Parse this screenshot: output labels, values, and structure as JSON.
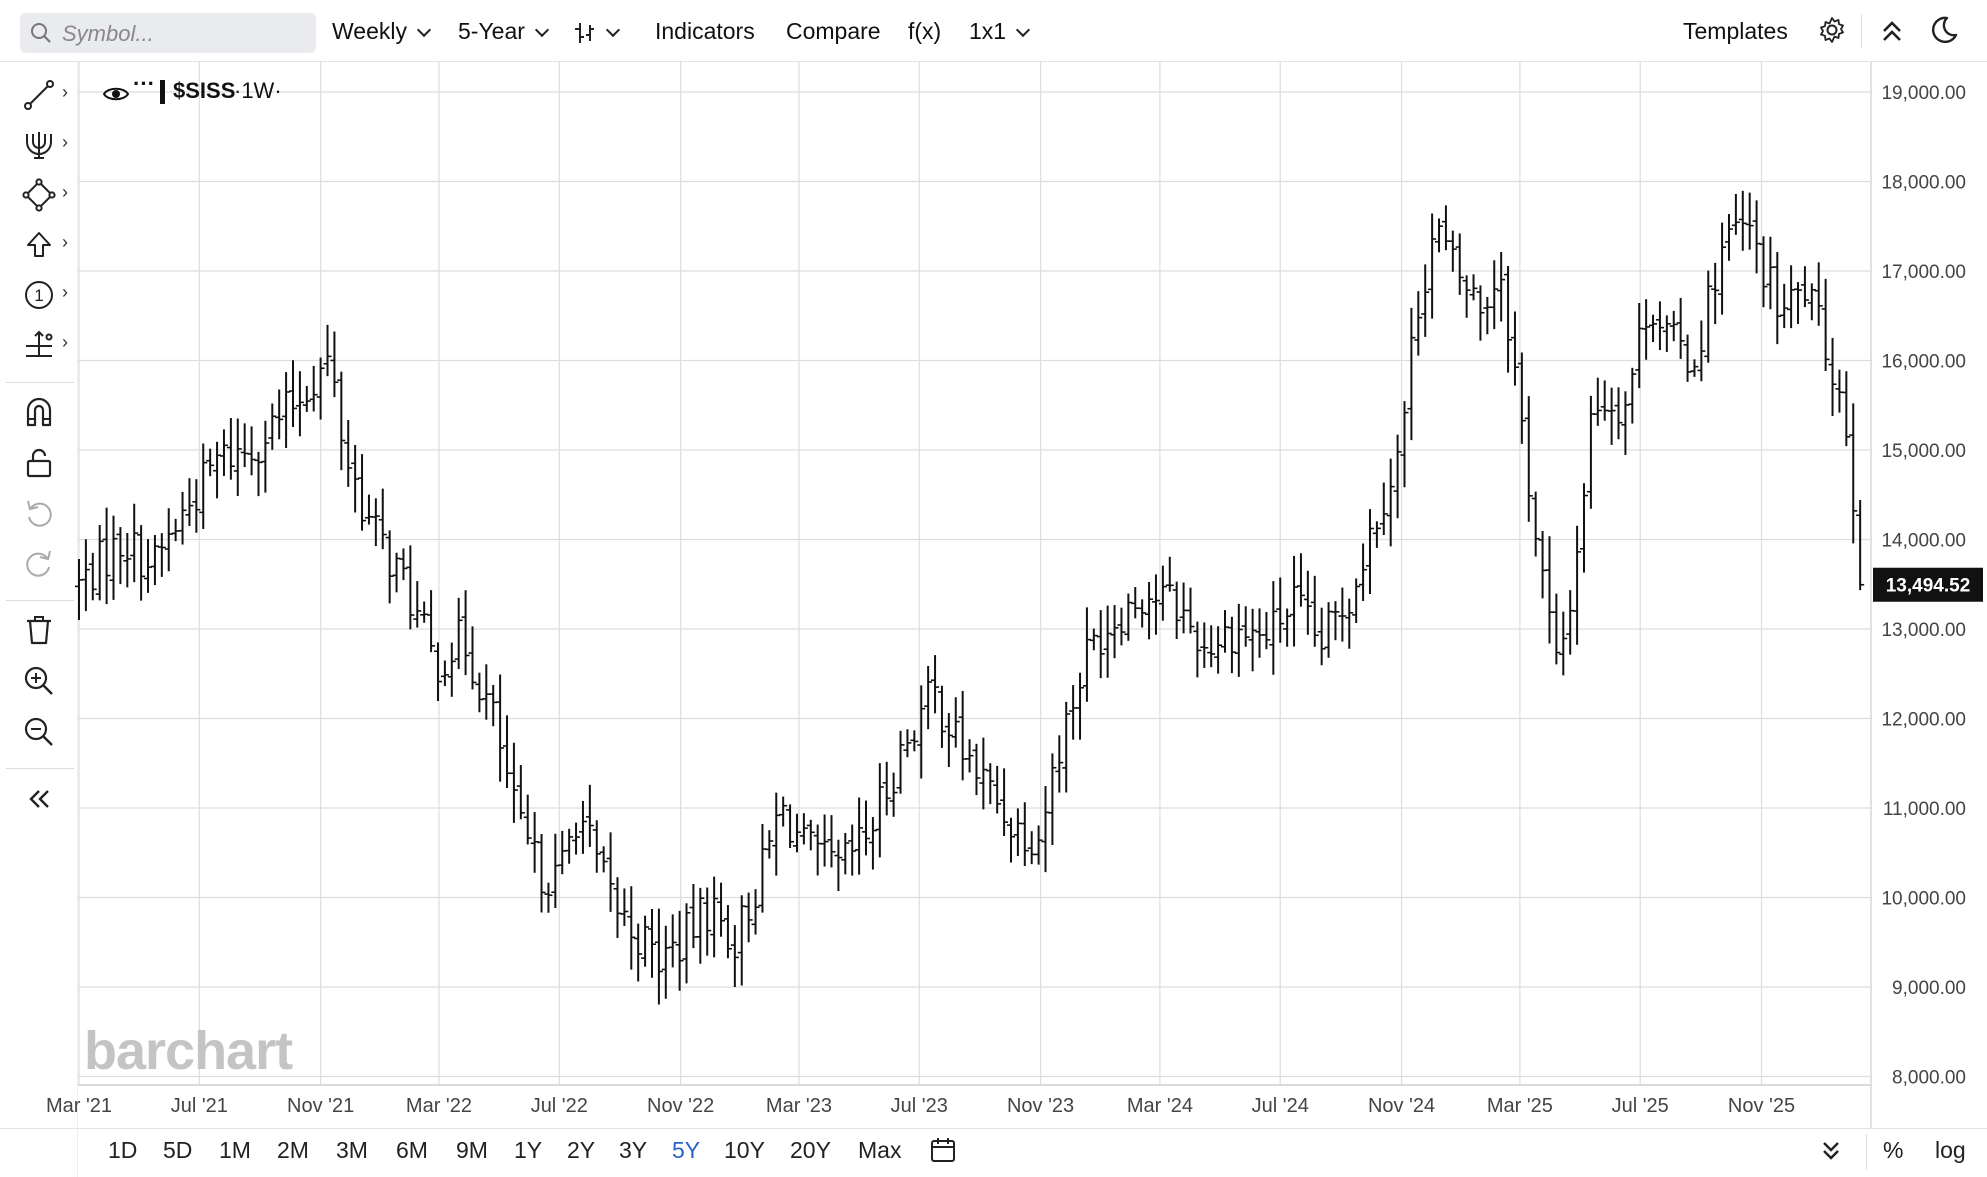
{
  "toolbar": {
    "symbol_placeholder": "Symbol...",
    "interval": "Weekly",
    "range": "5-Year",
    "indicators": "Indicators",
    "compare": "Compare",
    "fx": "f(x)",
    "layout": "1x1",
    "templates": "Templates"
  },
  "legend": {
    "symbol": "$SISS",
    "interval": "·1W·"
  },
  "watermark": "barchart",
  "range_buttons": [
    "1D",
    "5D",
    "1M",
    "2M",
    "3M",
    "6M",
    "9M",
    "1Y",
    "2Y",
    "3Y",
    "5Y",
    "10Y",
    "20Y",
    "Max"
  ],
  "active_range": "5Y",
  "bottom_right": {
    "percent": "%",
    "log": "log"
  },
  "colors": {
    "bars": "#111111",
    "grid": "#dddddd",
    "active": "#2b64c8",
    "last_price_bg": "#111111"
  },
  "chart_data": {
    "type": "ohlc",
    "symbol": "$SISS",
    "interval": "1W",
    "last_price": "13,494.52",
    "x_ticks": [
      "Mar '21",
      "Jul '21",
      "Nov '21",
      "Mar '22",
      "Jul '22",
      "Nov '22",
      "Mar '23",
      "Jul '23",
      "Nov '23",
      "Mar '24",
      "Jul '24",
      "Nov '24",
      "Mar '25",
      "Jul '25",
      "Nov '25"
    ],
    "y_ticks": [
      "8,000.00",
      "9,000.00",
      "10,000.00",
      "11,000.00",
      "12,000.00",
      "13,000.00",
      "14,000.00",
      "15,000.00",
      "16,000.00",
      "17,000.00",
      "18,000.00",
      "19,000.00"
    ],
    "ylim": [
      8000,
      19000
    ],
    "xlim": [
      "2021-02-28",
      "2026-02-20"
    ],
    "grid": true,
    "anchors": [
      [
        "2021-03-01",
        13500
      ],
      [
        "2021-04-15",
        14000
      ],
      [
        "2021-05-15",
        13700
      ],
      [
        "2021-06-15",
        14300
      ],
      [
        "2021-07-20",
        14900
      ],
      [
        "2021-08-20",
        15000
      ],
      [
        "2021-09-25",
        15400
      ],
      [
        "2021-10-25",
        15800
      ],
      [
        "2021-11-10",
        16000
      ],
      [
        "2021-11-25",
        15000
      ],
      [
        "2021-12-20",
        14200
      ],
      [
        "2022-01-25",
        13500
      ],
      [
        "2022-02-25",
        12600
      ],
      [
        "2022-03-25",
        12900
      ],
      [
        "2022-04-25",
        12000
      ],
      [
        "2022-05-20",
        10800
      ],
      [
        "2022-06-10",
        10300
      ],
      [
        "2022-06-30",
        10200
      ],
      [
        "2022-07-20",
        11000
      ],
      [
        "2022-08-10",
        10300
      ],
      [
        "2022-09-01",
        9800
      ],
      [
        "2022-10-10",
        9300
      ],
      [
        "2022-11-01",
        9500
      ],
      [
        "2022-12-01",
        9900
      ],
      [
        "2022-12-25",
        9500
      ],
      [
        "2023-01-20",
        10200
      ],
      [
        "2023-02-10",
        11000
      ],
      [
        "2023-03-10",
        10500
      ],
      [
        "2023-04-10",
        10300
      ],
      [
        "2023-05-10",
        10700
      ],
      [
        "2023-06-15",
        11700
      ],
      [
        "2023-07-15",
        12300
      ],
      [
        "2023-08-10",
        11700
      ],
      [
        "2023-09-10",
        11200
      ],
      [
        "2023-10-05",
        10800
      ],
      [
        "2023-10-30",
        10700
      ],
      [
        "2023-11-20",
        11700
      ],
      [
        "2023-12-20",
        12800
      ],
      [
        "2024-01-20",
        13200
      ],
      [
        "2024-02-15",
        13400
      ],
      [
        "2024-03-15",
        13300
      ],
      [
        "2024-04-15",
        12800
      ],
      [
        "2024-05-15",
        13000
      ],
      [
        "2024-06-15",
        12900
      ],
      [
        "2024-07-15",
        13300
      ],
      [
        "2024-08-10",
        12800
      ],
      [
        "2024-09-10",
        13400
      ],
      [
        "2024-10-10",
        14400
      ],
      [
        "2024-10-31",
        15000
      ],
      [
        "2024-11-15",
        16500
      ],
      [
        "2024-12-05",
        17500
      ],
      [
        "2024-12-25",
        17000
      ],
      [
        "2025-01-20",
        16600
      ],
      [
        "2025-02-10",
        17000
      ],
      [
        "2025-02-25",
        15800
      ],
      [
        "2025-03-15",
        14200
      ],
      [
        "2025-04-08",
        12500
      ],
      [
        "2025-04-25",
        13600
      ],
      [
        "2025-05-15",
        15600
      ],
      [
        "2025-06-15",
        15500
      ],
      [
        "2025-07-10",
        16700
      ],
      [
        "2025-08-01",
        16200
      ],
      [
        "2025-08-25",
        16000
      ],
      [
        "2025-09-20",
        17200
      ],
      [
        "2025-10-10",
        17500
      ],
      [
        "2025-10-25",
        17300
      ],
      [
        "2025-11-20",
        16500
      ],
      [
        "2025-12-15",
        16800
      ],
      [
        "2026-01-10",
        16000
      ],
      [
        "2026-01-25",
        15400
      ],
      [
        "2026-02-05",
        14200
      ],
      [
        "2026-02-13",
        13494.52
      ]
    ]
  }
}
